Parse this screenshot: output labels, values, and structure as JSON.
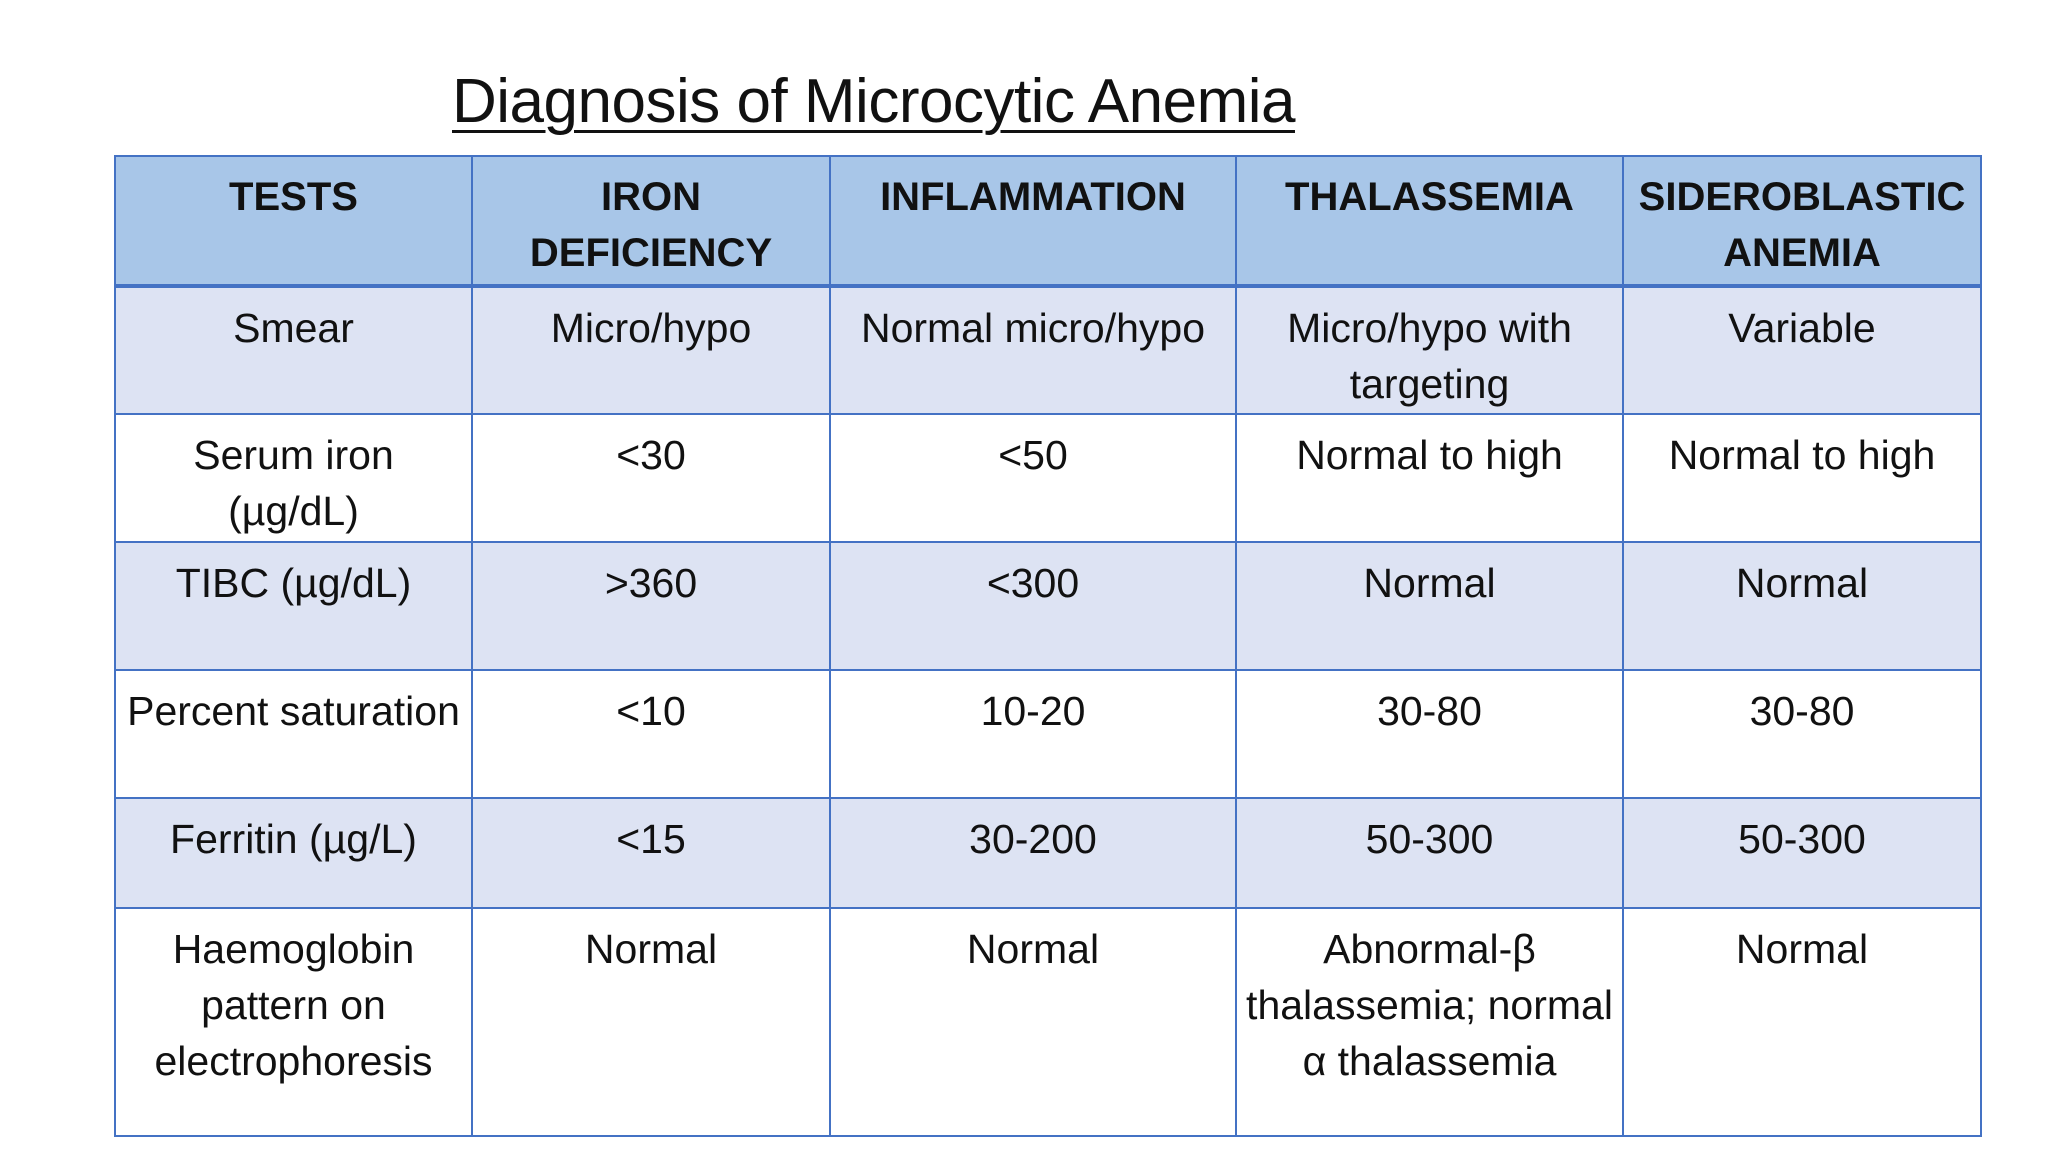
{
  "title": "Diagnosis of Microcytic Anemia",
  "table": {
    "headers": [
      "TESTS",
      "IRON DEFICIENCY",
      "INFLAMMATION",
      "THALASSEMIA",
      "SIDEROBLASTIC ANEMIA"
    ],
    "rows": [
      [
        "Smear",
        "Micro/hypo",
        "Normal micro/hypo",
        "Micro/hypo with targeting",
        "Variable"
      ],
      [
        "Serum iron (µg/dL)",
        "<30",
        "<50",
        "Normal to high",
        "Normal to high"
      ],
      [
        "TIBC (µg/dL)",
        ">360",
        "<300",
        "Normal",
        "Normal"
      ],
      [
        "Percent saturation",
        "<10",
        "10-20",
        "30-80",
        "30-80"
      ],
      [
        "Ferritin (µg/L)",
        "<15",
        "30-200",
        "50-300",
        "50-300"
      ],
      [
        "Haemoglobin pattern on electrophoresis",
        "Normal",
        "Normal",
        "Abnormal-β thalassemia; normal α thalassemia",
        "Normal"
      ]
    ]
  },
  "colors": {
    "border": "#4472c4",
    "header_bg": "#a8c6e8",
    "shaded_row_bg": "#dde3f3"
  }
}
